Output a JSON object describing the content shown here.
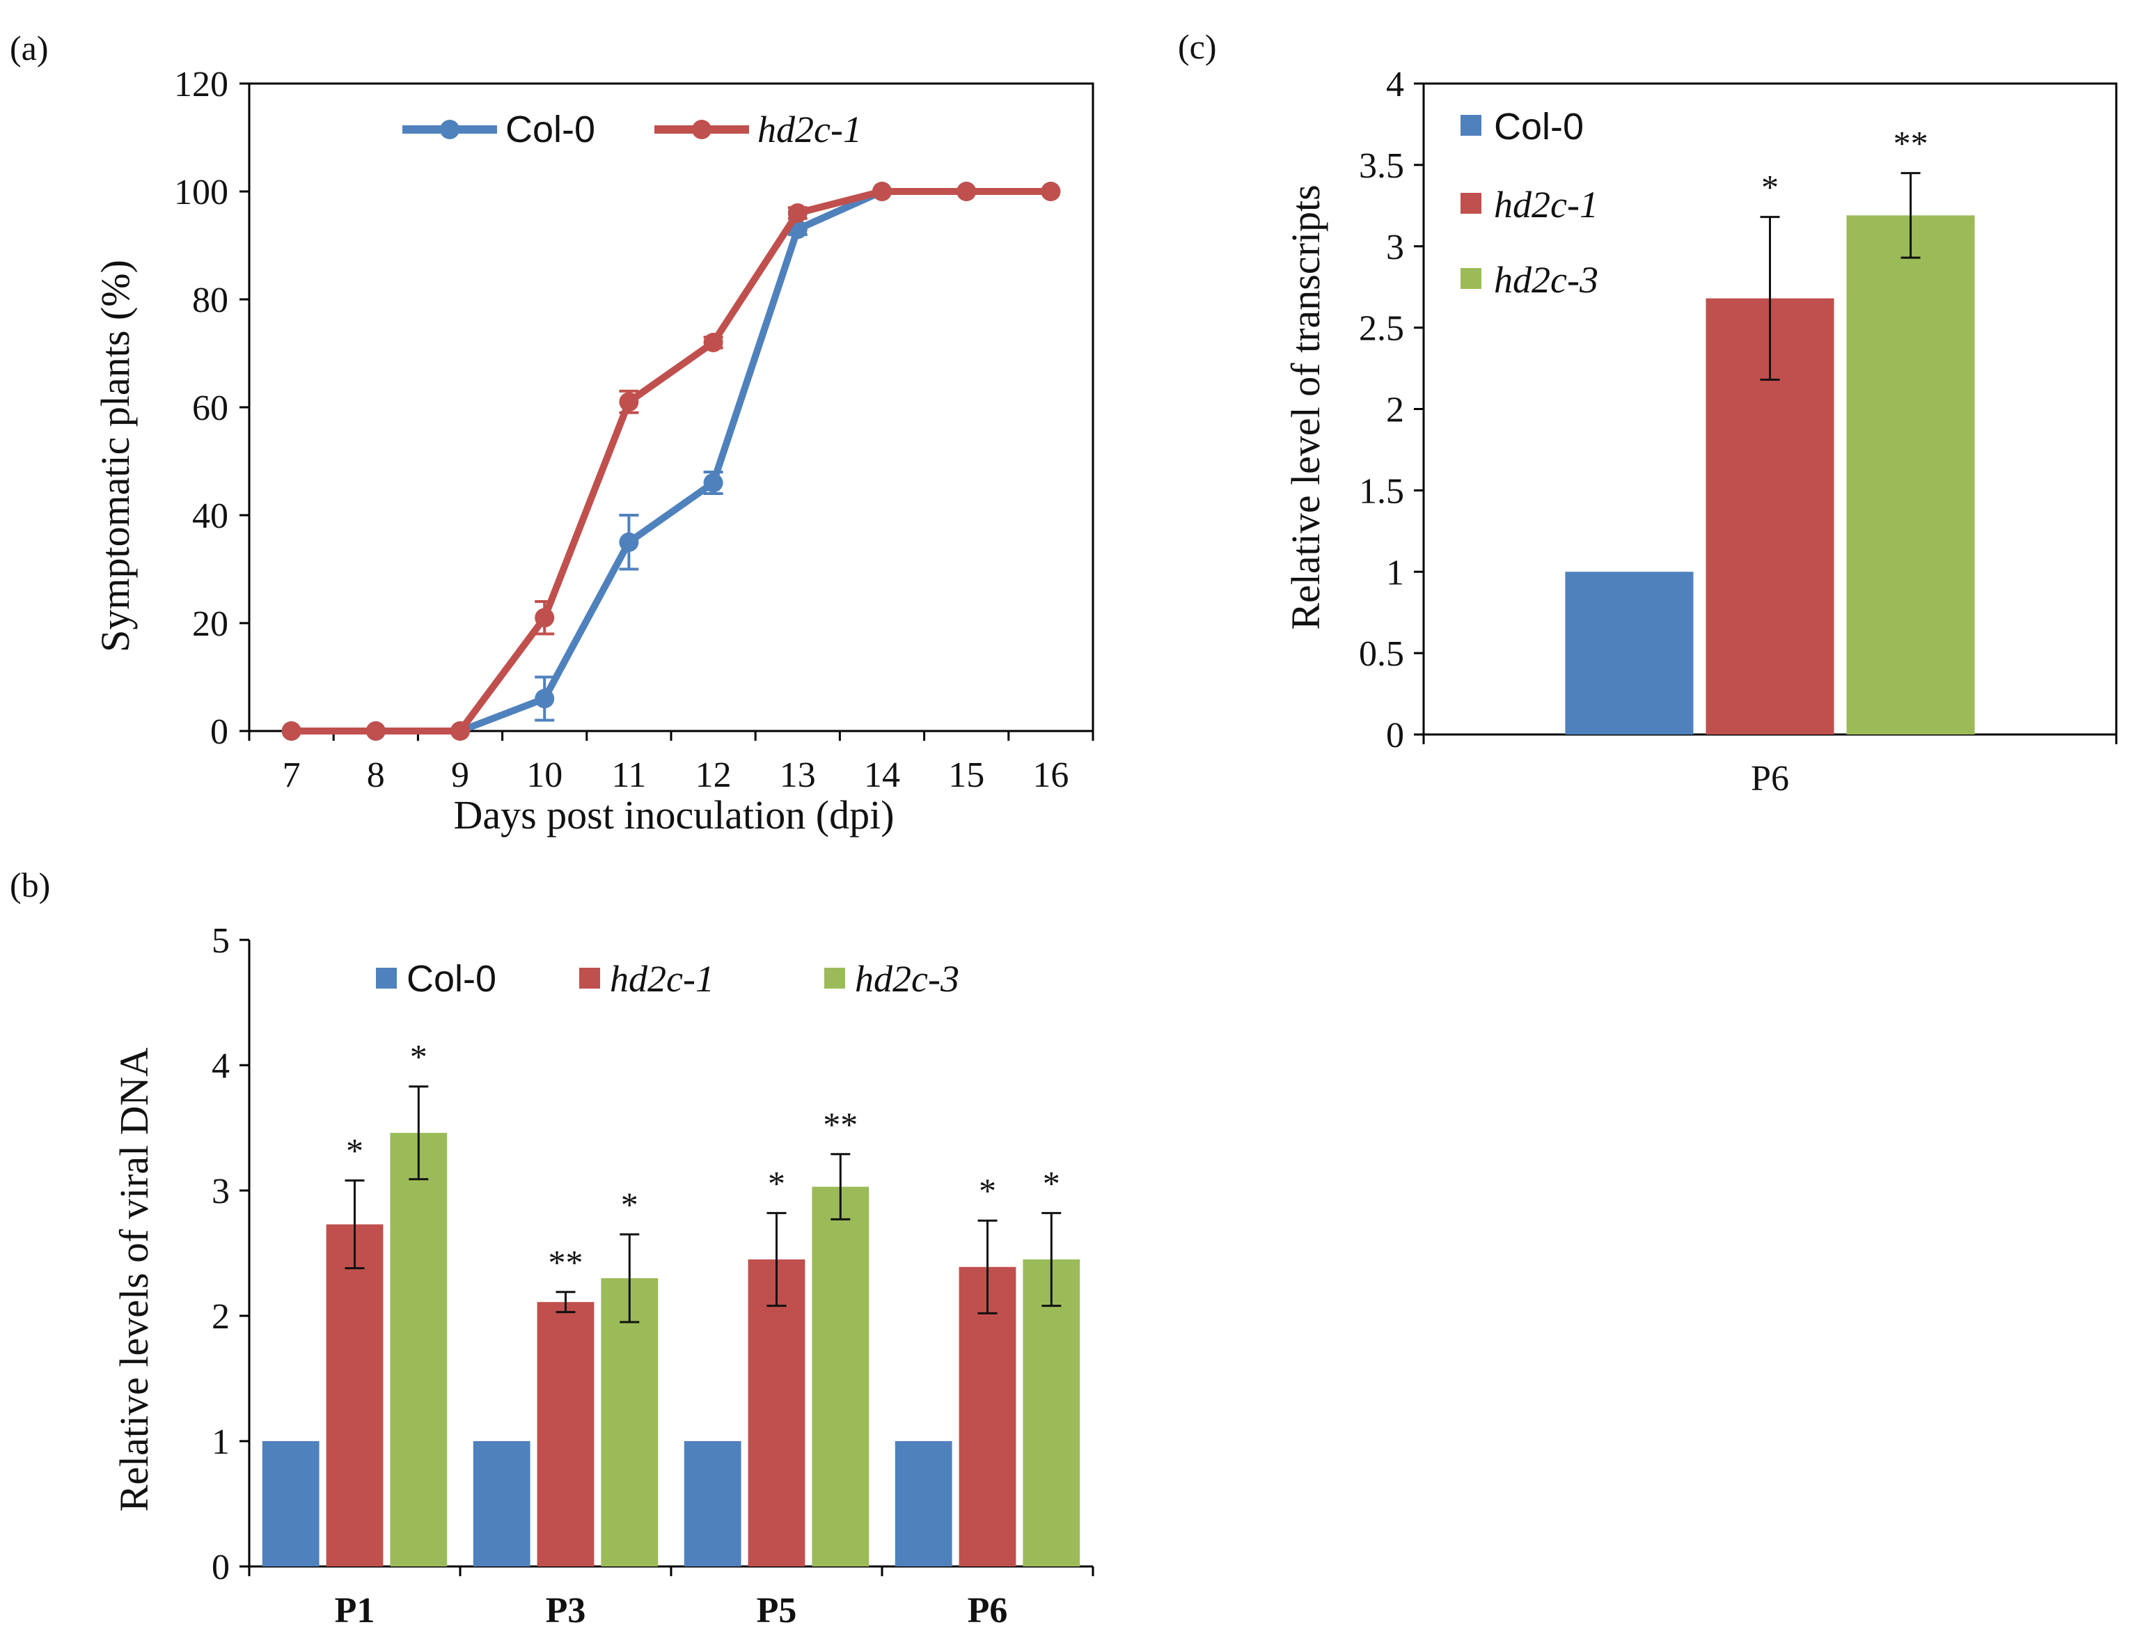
{
  "chart_data": [
    {
      "panel_label": "(a)",
      "type": "line",
      "xlabel": "Days post inoculation (dpi)",
      "ylabel": "Symptomatic plants (%)",
      "x": [
        7,
        8,
        9,
        10,
        11,
        12,
        13,
        14,
        15,
        16
      ],
      "ylim": [
        0,
        120
      ],
      "yticks": [
        0,
        20,
        40,
        60,
        80,
        100,
        120
      ],
      "legend_position": "top-center",
      "series": [
        {
          "name": "Col-0",
          "italic": false,
          "color": "#4f81bd",
          "values": [
            0,
            0,
            0,
            6,
            35,
            46,
            93,
            100,
            100,
            100
          ],
          "errors": [
            0,
            0,
            0,
            4,
            5,
            2,
            1,
            0,
            0,
            0
          ]
        },
        {
          "name": "hd2c-1",
          "italic": true,
          "color": "#c0504d",
          "values": [
            0,
            0,
            0,
            21,
            61,
            72,
            96,
            100,
            100,
            100
          ],
          "errors": [
            0,
            0,
            0,
            3,
            2,
            1,
            1,
            0,
            0,
            0
          ]
        }
      ]
    },
    {
      "panel_label": "(b)",
      "type": "bar",
      "xlabel": "",
      "ylabel": "Relative levels of viral DNA",
      "categories": [
        "P1",
        "P3",
        "P5",
        "P6"
      ],
      "ylim": [
        0,
        5
      ],
      "yticks": [
        0,
        1,
        2,
        3,
        4,
        5
      ],
      "legend_position": "top-center",
      "series": [
        {
          "name": "Col-0",
          "italic": false,
          "color": "#4f81bd",
          "values": [
            1,
            1,
            1,
            1
          ],
          "errors": [
            0,
            0,
            0,
            0
          ],
          "stars": [
            "",
            "",
            "",
            ""
          ]
        },
        {
          "name": "hd2c-1",
          "italic": true,
          "color": "#c0504d",
          "values": [
            2.73,
            2.11,
            2.45,
            2.39
          ],
          "errors": [
            0.35,
            0.08,
            0.37,
            0.37
          ],
          "stars": [
            "*",
            "**",
            "*",
            "*"
          ]
        },
        {
          "name": "hd2c-3",
          "italic": true,
          "color": "#9bbb59",
          "values": [
            3.46,
            2.3,
            3.03,
            2.45
          ],
          "errors": [
            0.37,
            0.35,
            0.26,
            0.37
          ],
          "stars": [
            "*",
            "*",
            "**",
            "*"
          ]
        }
      ]
    },
    {
      "panel_label": "(c)",
      "type": "bar",
      "xlabel": "",
      "ylabel": "Relative level of transcripts",
      "categories": [
        "P6"
      ],
      "ylim": [
        0,
        4
      ],
      "yticks": [
        0,
        0.5,
        1,
        1.5,
        2,
        2.5,
        3,
        3.5,
        4
      ],
      "legend_position": "top-left",
      "series": [
        {
          "name": "Col-0",
          "italic": false,
          "color": "#4f81bd",
          "values": [
            1
          ],
          "errors": [
            0
          ],
          "stars": [
            ""
          ]
        },
        {
          "name": "hd2c-1",
          "italic": true,
          "color": "#c0504d",
          "values": [
            2.68
          ],
          "errors": [
            0.5
          ],
          "stars": [
            "*"
          ]
        },
        {
          "name": "hd2c-3",
          "italic": true,
          "color": "#9bbb59",
          "values": [
            3.19
          ],
          "errors": [
            0.26
          ],
          "stars": [
            "**"
          ]
        }
      ]
    }
  ]
}
